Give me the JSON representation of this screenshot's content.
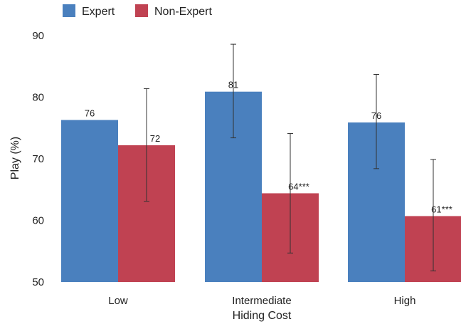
{
  "chart_data": {
    "type": "bar",
    "title": "",
    "xlabel": "Hiding Cost",
    "ylabel": "Play (%)",
    "ylim": [
      50,
      90
    ],
    "yticks": [
      50,
      60,
      70,
      80,
      90
    ],
    "categories": [
      "Low",
      "Intermediate",
      "High"
    ],
    "grid": false,
    "legend_position": "top-left",
    "series": [
      {
        "name": "Expert",
        "color": "#4a80be",
        "values": [
          76.3,
          80.9,
          75.9
        ],
        "labels": [
          "76",
          "81",
          "76"
        ],
        "error_low": [
          76.3,
          73.4,
          68.4
        ],
        "error_high": [
          76.3,
          88.6,
          83.7
        ]
      },
      {
        "name": "Non-Expert",
        "color": "#c04252",
        "values": [
          72.2,
          64.4,
          60.7
        ],
        "labels": [
          "72",
          "64***",
          "61***"
        ],
        "error_low": [
          63.1,
          54.7,
          51.8
        ],
        "error_high": [
          81.4,
          74.1,
          69.9
        ]
      }
    ]
  }
}
